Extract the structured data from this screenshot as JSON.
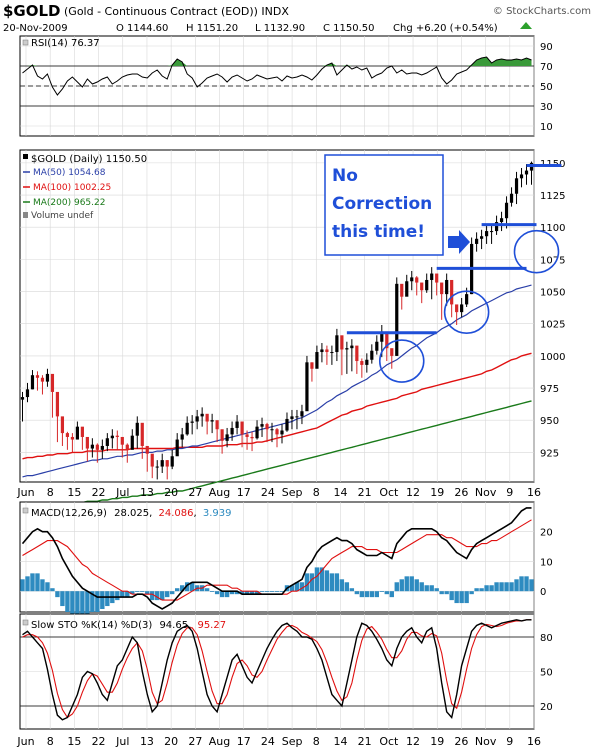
{
  "header": {
    "symbol": "$GOLD",
    "description": "(Gold - Continuous Contract (EOD)) INDX",
    "watermark": "© StockCharts.com",
    "date": "20-Nov-2009",
    "open": "O 1144.60",
    "high": "H 1151.20",
    "low": "L 1132.90",
    "close": "C 1150.50",
    "change": "Chg +6.20 (+0.54%)",
    "change_arrow_color": "#2ca02c"
  },
  "annotation": {
    "text_lines": [
      "No",
      "Correction",
      "this time!"
    ],
    "text_color": "#1f4fd8",
    "mark_color": "#1f4fd8"
  },
  "colors": {
    "up": "#000000",
    "down": "#d62728",
    "ma50": "#2a3fa8",
    "ma100": "#e01010",
    "ma200": "#1a7a1a",
    "rsi_fill": "#3a9a3a",
    "histogram": "#2e8bc0",
    "signal": "#e01010"
  },
  "chart_data": [
    {
      "panel": "rsi",
      "type": "line",
      "legend": "RSI(14) 76.37",
      "ylim": [
        0,
        100
      ],
      "yticks": [
        10,
        30,
        50,
        70,
        90
      ],
      "reference_lines": [
        30,
        70
      ],
      "values": [
        63,
        67,
        71,
        60,
        57,
        62,
        49,
        41,
        47,
        55,
        59,
        54,
        49,
        57,
        52,
        54,
        57,
        59,
        52,
        55,
        59,
        61,
        62,
        62,
        59,
        58,
        63,
        66,
        60,
        57,
        71,
        77,
        74,
        62,
        58,
        49,
        53,
        58,
        60,
        62,
        59,
        54,
        59,
        61,
        58,
        55,
        57,
        61,
        59,
        57,
        58,
        59,
        55,
        60,
        58,
        59,
        61,
        59,
        56,
        61,
        67,
        71,
        73,
        61,
        66,
        71,
        67,
        69,
        66,
        68,
        58,
        61,
        63,
        68,
        70,
        63,
        66,
        62,
        63,
        63,
        61,
        63,
        66,
        69,
        58,
        52,
        56,
        62,
        64,
        66,
        71,
        76,
        78,
        79,
        73,
        76,
        77,
        76,
        76,
        77,
        76,
        78,
        76
      ]
    },
    {
      "panel": "price",
      "type": "candlestick",
      "legend": [
        "$GOLD (Daily) 1150.50",
        "MA(50) 1054.68",
        "MA(100) 1002.25",
        "MA(200) 965.22",
        "Volume undef"
      ],
      "x_labels": [
        "Jun",
        "8",
        "15",
        "22",
        "Jul",
        "13",
        "20",
        "27",
        "Aug",
        "17",
        "24",
        "Sep",
        "8",
        "14",
        "21",
        "Oct",
        "12",
        "19",
        "26",
        "Nov",
        "9",
        "16"
      ],
      "ylim": [
        902,
        1160
      ],
      "yticks": [
        925,
        950,
        975,
        1000,
        1025,
        1050,
        1075,
        1100,
        1125,
        1150
      ],
      "close": [
        968,
        974,
        985,
        983,
        980,
        986,
        972,
        953,
        940,
        937,
        935,
        945,
        937,
        928,
        931,
        927,
        930,
        936,
        938,
        937,
        931,
        927,
        938,
        948,
        930,
        924,
        914,
        914,
        919,
        914,
        922,
        935,
        939,
        948,
        949,
        953,
        955,
        949,
        950,
        943,
        934,
        939,
        944,
        949,
        939,
        937,
        936,
        945,
        947,
        943,
        943,
        939,
        942,
        951,
        953,
        953,
        957,
        995,
        990,
        1003,
        1005,
        1003,
        1003,
        1016,
        1005,
        1006,
        1008,
        996,
        993,
        997,
        1004,
        1011,
        1019,
        1006,
        1000,
        1056,
        1046,
        1058,
        1061,
        1057,
        1051,
        1059,
        1064,
        1057,
        1048,
        1059,
        1040,
        1034,
        1040,
        1048,
        1087,
        1091,
        1093,
        1097,
        1097,
        1104,
        1107,
        1119,
        1126,
        1138,
        1141,
        1144,
        1150
      ],
      "high": [
        972,
        979,
        989,
        988,
        985,
        990,
        977,
        958,
        944,
        941,
        940,
        949,
        942,
        934,
        936,
        932,
        935,
        940,
        943,
        942,
        936,
        932,
        943,
        953,
        935,
        929,
        919,
        919,
        924,
        919,
        927,
        940,
        944,
        953,
        954,
        958,
        960,
        954,
        955,
        948,
        939,
        944,
        949,
        954,
        944,
        942,
        941,
        950,
        952,
        948,
        948,
        944,
        947,
        956,
        958,
        958,
        962,
        1000,
        995,
        1008,
        1010,
        1008,
        1008,
        1021,
        1010,
        1011,
        1013,
        1001,
        998,
        1002,
        1009,
        1016,
        1024,
        1011,
        1005,
        1061,
        1051,
        1063,
        1066,
        1062,
        1056,
        1064,
        1069,
        1062,
        1053,
        1064,
        1045,
        1039,
        1045,
        1053,
        1092,
        1096,
        1098,
        1102,
        1102,
        1109,
        1112,
        1124,
        1131,
        1143,
        1146,
        1149,
        1151
      ],
      "low": [
        949,
        964,
        974,
        973,
        970,
        976,
        952,
        933,
        930,
        927,
        925,
        935,
        927,
        918,
        921,
        917,
        920,
        926,
        928,
        927,
        921,
        917,
        928,
        928,
        920,
        910,
        905,
        904,
        909,
        904,
        912,
        925,
        929,
        938,
        939,
        943,
        945,
        939,
        940,
        933,
        924,
        929,
        934,
        939,
        929,
        927,
        926,
        935,
        937,
        933,
        933,
        929,
        932,
        941,
        943,
        943,
        947,
        985,
        980,
        993,
        995,
        993,
        993,
        996,
        985,
        986,
        988,
        986,
        983,
        987,
        994,
        1001,
        999,
        996,
        990,
        1000,
        1036,
        1048,
        1051,
        1047,
        1041,
        1049,
        1044,
        1047,
        1028,
        1039,
        1030,
        1024,
        1030,
        1038,
        1048,
        1081,
        1083,
        1087,
        1087,
        1094,
        1097,
        1099,
        1116,
        1118,
        1131,
        1133,
        1133
      ],
      "ma50": [
        906,
        907,
        907,
        908,
        909,
        910,
        911,
        912,
        913,
        914,
        915,
        916,
        917,
        918,
        919,
        919,
        920,
        920,
        921,
        922,
        922,
        923,
        923,
        924,
        925,
        925,
        925,
        926,
        926,
        927,
        927,
        928,
        928,
        929,
        930,
        930,
        931,
        932,
        933,
        934,
        935,
        936,
        937,
        938,
        939,
        940,
        941,
        942,
        943,
        944,
        945,
        946,
        947,
        948,
        949,
        951,
        952,
        954,
        956,
        958,
        961,
        964,
        966,
        969,
        971,
        973,
        976,
        978,
        980,
        982,
        985,
        987,
        990,
        993,
        995,
        997,
        1000,
        1003,
        1006,
        1008,
        1011,
        1014,
        1016,
        1018,
        1021,
        1023,
        1025,
        1028,
        1030,
        1032,
        1035,
        1037,
        1039,
        1041,
        1043,
        1045,
        1047,
        1049,
        1050,
        1052,
        1053,
        1054,
        1055
      ],
      "ma100": [
        920,
        921,
        921,
        922,
        922,
        923,
        923,
        924,
        924,
        924,
        925,
        925,
        925,
        926,
        926,
        926,
        926,
        927,
        927,
        927,
        927,
        927,
        928,
        928,
        928,
        928,
        928,
        928,
        928,
        928,
        928,
        929,
        929,
        929,
        929,
        929,
        929,
        930,
        930,
        930,
        930,
        931,
        931,
        931,
        932,
        932,
        932,
        933,
        933,
        934,
        935,
        936,
        937,
        938,
        939,
        940,
        941,
        942,
        943,
        944,
        946,
        948,
        950,
        952,
        954,
        955,
        957,
        958,
        959,
        961,
        962,
        963,
        964,
        965,
        966,
        967,
        969,
        970,
        971,
        972,
        974,
        975,
        976,
        977,
        978,
        979,
        980,
        981,
        982,
        983,
        984,
        985,
        986,
        988,
        989,
        991,
        993,
        995,
        997,
        998,
        1000,
        1001,
        1002
      ],
      "ma200": [
        882,
        882,
        883,
        883,
        883,
        884,
        884,
        885,
        885,
        885,
        886,
        886,
        886,
        887,
        887,
        887,
        888,
        888,
        889,
        889,
        890,
        890,
        891,
        891,
        892,
        892,
        892,
        893,
        893,
        894,
        894,
        895,
        895,
        896,
        897,
        898,
        899,
        900,
        901,
        902,
        903,
        904,
        905,
        906,
        907,
        908,
        909,
        910,
        911,
        912,
        913,
        914,
        915,
        916,
        917,
        918,
        919,
        920,
        921,
        922,
        923,
        924,
        925,
        926,
        927,
        928,
        929,
        930,
        931,
        932,
        933,
        934,
        935,
        936,
        937,
        938,
        939,
        940,
        941,
        942,
        943,
        944,
        945,
        946,
        947,
        948,
        949,
        950,
        951,
        952,
        953,
        954,
        955,
        956,
        957,
        958,
        959,
        960,
        961,
        962,
        963,
        964,
        965
      ],
      "annotations": {
        "lines": [
          {
            "y": 1018,
            "from_day": 65,
            "to_day": 83
          },
          {
            "y": 1068,
            "from_day": 83,
            "to_day": 101
          },
          {
            "y": 1102,
            "from_day": 92,
            "to_day": 103
          },
          {
            "y": 1148,
            "from_day": 101,
            "to_day": 108
          }
        ],
        "circles": [
          {
            "day": 76,
            "y": 996
          },
          {
            "day": 89,
            "y": 1034
          },
          {
            "day": 103,
            "y": 1081
          }
        ]
      }
    },
    {
      "panel": "macd",
      "type": "line",
      "legend": {
        "label": "MACD(12,26,9)",
        "macd": "28.025",
        "signal": "24.086",
        "histogram": "3.939"
      },
      "ylim": [
        -7,
        30
      ],
      "yticks": [
        0,
        10,
        20
      ],
      "macd": [
        16,
        18,
        20,
        21,
        20,
        20,
        18,
        15,
        11,
        8,
        5,
        3,
        1,
        0,
        -1,
        -2,
        -2,
        -2,
        -2,
        -2,
        -2,
        -2,
        -2,
        -1,
        -1,
        -2,
        -4,
        -5,
        -6,
        -5,
        -4,
        -2,
        0,
        2,
        3,
        3,
        3,
        3,
        2,
        1,
        0,
        0,
        0,
        0,
        -1,
        -1,
        -1,
        -1,
        -1,
        -1,
        -1,
        -1,
        -1,
        1,
        2,
        3,
        4,
        8,
        10,
        13,
        15,
        16,
        17,
        18,
        17,
        17,
        16,
        14,
        13,
        12,
        12,
        12,
        13,
        12,
        11,
        16,
        18,
        20,
        21,
        21,
        21,
        21,
        21,
        20,
        18,
        17,
        15,
        13,
        12,
        11,
        14,
        16,
        17,
        18,
        19,
        20,
        21,
        22,
        23,
        25,
        27,
        28,
        28
      ],
      "signal": [
        12,
        13,
        14,
        15,
        16,
        17,
        17,
        17,
        16,
        15,
        13,
        11,
        9,
        8,
        6,
        5,
        4,
        3,
        2,
        1,
        0,
        0,
        -1,
        -1,
        -1,
        -1,
        -1,
        -2,
        -3,
        -3,
        -3,
        -3,
        -2,
        -1,
        0,
        1,
        1,
        2,
        2,
        2,
        2,
        2,
        1,
        1,
        0,
        0,
        0,
        0,
        -1,
        -1,
        -1,
        -1,
        -1,
        -1,
        0,
        0,
        1,
        2,
        4,
        5,
        7,
        9,
        11,
        12,
        13,
        14,
        15,
        15,
        15,
        14,
        14,
        14,
        13,
        13,
        13,
        13,
        14,
        15,
        16,
        17,
        18,
        19,
        19,
        19,
        19,
        18,
        18,
        17,
        16,
        15,
        15,
        15,
        16,
        16,
        17,
        17,
        18,
        19,
        20,
        21,
        22,
        23,
        24
      ],
      "histogram": [
        4,
        5,
        6,
        6,
        4,
        3,
        1,
        -2,
        -5,
        -7,
        -8,
        -8,
        -8,
        -8,
        -7,
        -7,
        -6,
        -5,
        -4,
        -3,
        -2,
        -2,
        -1,
        0,
        0,
        -1,
        -3,
        -3,
        -3,
        -2,
        -1,
        1,
        2,
        3,
        3,
        2,
        2,
        1,
        0,
        -1,
        -2,
        -2,
        -1,
        -1,
        -1,
        -1,
        -1,
        -1,
        0,
        0,
        0,
        0,
        0,
        2,
        2,
        3,
        3,
        6,
        6,
        8,
        8,
        7,
        6,
        6,
        4,
        3,
        1,
        -1,
        -2,
        -2,
        -2,
        -2,
        0,
        -1,
        -2,
        3,
        4,
        5,
        5,
        4,
        3,
        2,
        2,
        1,
        -1,
        -1,
        -3,
        -4,
        -4,
        -4,
        -1,
        1,
        1,
        2,
        2,
        3,
        3,
        3,
        3,
        4,
        5,
        5,
        4
      ]
    },
    {
      "panel": "stochastic",
      "type": "line",
      "legend": {
        "label": "Slow STO %K(14) %D(3)",
        "k": "94.65",
        "d": "95.27"
      },
      "ylim": [
        0,
        100
      ],
      "yticks": [
        20,
        50,
        80
      ],
      "reference_lines": [
        20,
        80
      ],
      "k": [
        82,
        85,
        80,
        75,
        70,
        52,
        30,
        12,
        8,
        10,
        20,
        30,
        45,
        50,
        48,
        40,
        30,
        25,
        40,
        55,
        60,
        70,
        80,
        75,
        50,
        30,
        15,
        20,
        40,
        60,
        75,
        85,
        88,
        90,
        85,
        70,
        50,
        30,
        20,
        15,
        30,
        45,
        60,
        65,
        55,
        45,
        40,
        50,
        60,
        70,
        78,
        85,
        90,
        92,
        88,
        85,
        80,
        80,
        78,
        70,
        60,
        45,
        30,
        25,
        20,
        40,
        60,
        80,
        92,
        90,
        85,
        78,
        70,
        60,
        55,
        70,
        80,
        85,
        88,
        80,
        75,
        85,
        88,
        70,
        40,
        15,
        10,
        30,
        55,
        70,
        85,
        90,
        92,
        90,
        88,
        90,
        92,
        93,
        94,
        95,
        94,
        95,
        95
      ],
      "d": [
        80,
        82,
        82,
        80,
        75,
        66,
        51,
        31,
        17,
        10,
        13,
        20,
        32,
        42,
        48,
        46,
        39,
        32,
        32,
        40,
        52,
        62,
        70,
        75,
        68,
        52,
        32,
        22,
        25,
        40,
        58,
        73,
        83,
        88,
        88,
        82,
        68,
        50,
        33,
        22,
        22,
        30,
        45,
        57,
        60,
        55,
        47,
        45,
        50,
        60,
        69,
        78,
        84,
        89,
        90,
        88,
        84,
        82,
        79,
        76,
        69,
        58,
        45,
        33,
        25,
        28,
        40,
        60,
        77,
        87,
        89,
        84,
        78,
        69,
        62,
        62,
        68,
        78,
        84,
        84,
        81,
        80,
        83,
        81,
        66,
        42,
        22,
        18,
        32,
        52,
        70,
        82,
        89,
        91,
        90,
        89,
        90,
        92,
        93,
        94,
        94,
        95,
        95
      ]
    }
  ],
  "x_axis_top": [
    "Jun",
    "8",
    "15",
    "22",
    "Jul",
    "13",
    "20",
    "27",
    "Aug",
    "17",
    "24",
    "Sep",
    "8",
    "14",
    "21",
    "Oct",
    "12",
    "19",
    "26",
    "Nov",
    "9",
    "16"
  ],
  "x_axis_bottom": [
    "Jun",
    "8",
    "15",
    "22",
    "Jul",
    "13",
    "20",
    "27",
    "Aug",
    "17",
    "24",
    "Sep",
    "8",
    "14",
    "21",
    "Oct",
    "12",
    "19",
    "26",
    "Nov",
    "9",
    "16"
  ]
}
